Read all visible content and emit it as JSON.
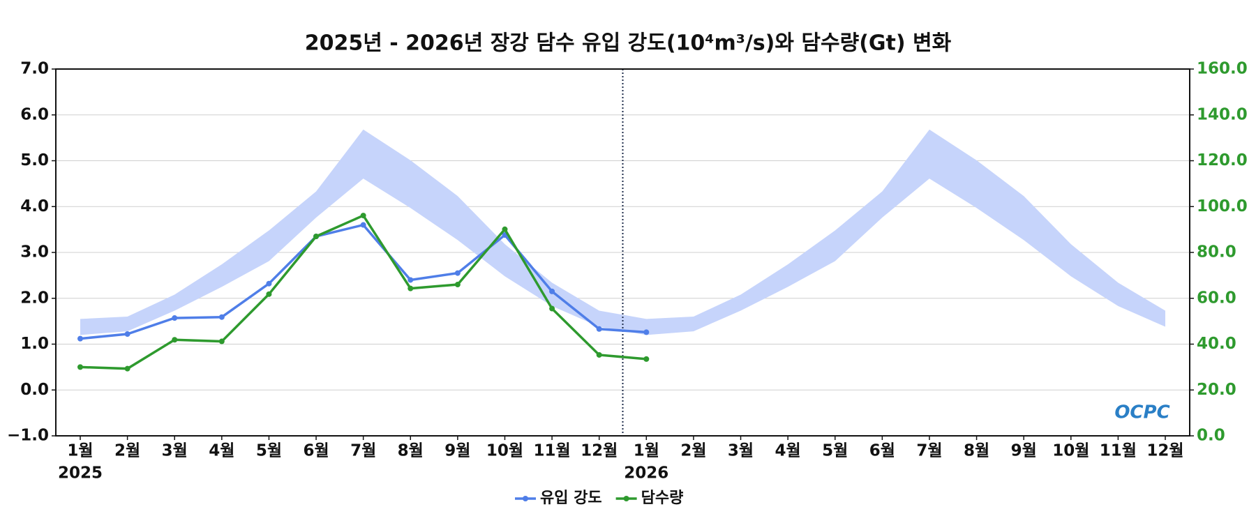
{
  "chart_data": {
    "type": "line",
    "title": "2025년 - 2026년 장강 담수 유입 강도(10⁴m³/s)와 담수량(Gt) 변화",
    "categories": [
      "1월",
      "2월",
      "3월",
      "4월",
      "5월",
      "6월",
      "7월",
      "8월",
      "9월",
      "10월",
      "11월",
      "12월",
      "1월",
      "2월",
      "3월",
      "4월",
      "5월",
      "6월",
      "7월",
      "8월",
      "9월",
      "10월",
      "11월",
      "12월"
    ],
    "years": [
      "2025",
      "2026"
    ],
    "ylim": [
      -1,
      7
    ],
    "yticks": [
      {
        "value": -1,
        "label": "−1.0"
      },
      {
        "value": 0,
        "label": "0.0"
      },
      {
        "value": 1,
        "label": "1.0"
      },
      {
        "value": 2,
        "label": "2.0"
      },
      {
        "value": 3,
        "label": "3.0"
      },
      {
        "value": 4,
        "label": "4.0"
      },
      {
        "value": 5,
        "label": "5.0"
      },
      {
        "value": 6,
        "label": "6.0"
      },
      {
        "value": 7,
        "label": "7.0"
      }
    ],
    "y2lim": [
      0,
      160
    ],
    "y2ticks": [
      {
        "value": 0,
        "label": "0.0"
      },
      {
        "value": 20,
        "label": "20.0"
      },
      {
        "value": 40,
        "label": "40.0"
      },
      {
        "value": 60,
        "label": "60.0"
      },
      {
        "value": 80,
        "label": "80.0"
      },
      {
        "value": 100,
        "label": "100.0"
      },
      {
        "value": 120,
        "label": "120.0"
      },
      {
        "value": 140,
        "label": "140.0"
      },
      {
        "value": 160,
        "label": "160.0"
      }
    ],
    "y2_color": "#2e9a2e",
    "grid": true,
    "band": {
      "color": "#c6d4fb",
      "upper": [
        1.55,
        1.6,
        2.08,
        2.74,
        3.48,
        4.33,
        5.68,
        5.01,
        4.23,
        3.18,
        2.34,
        1.73,
        1.55,
        1.6,
        2.08,
        2.74,
        3.48,
        4.33,
        5.68,
        5.01,
        4.23,
        3.18,
        2.34,
        1.73
      ],
      "lower": [
        1.2,
        1.28,
        1.73,
        2.25,
        2.81,
        3.76,
        4.61,
        3.97,
        3.27,
        2.48,
        1.83,
        1.38,
        1.2,
        1.28,
        1.73,
        2.25,
        2.81,
        3.76,
        4.61,
        3.97,
        3.27,
        2.48,
        1.83,
        1.38
      ]
    },
    "series": [
      {
        "name": "유입 강도",
        "color": "#4f7ee8",
        "values": [
          1.12,
          1.22,
          1.57,
          1.59,
          2.32,
          3.35,
          3.6,
          2.4,
          2.55,
          3.38,
          2.15,
          1.33,
          1.26,
          null,
          null,
          null,
          null,
          null,
          null,
          null,
          null,
          null,
          null,
          null
        ]
      },
      {
        "name": "담수량",
        "color": "#2e9a2e",
        "axis": "y2",
        "values": [
          30.0,
          29.3,
          41.9,
          41.2,
          61.8,
          87.0,
          96.1,
          64.3,
          66.0,
          90.1,
          55.5,
          35.3,
          33.5,
          null,
          null,
          null,
          null,
          null,
          null,
          null,
          null,
          null,
          null,
          null
        ]
      }
    ],
    "legend": "bottom",
    "watermark": "OCPC"
  }
}
